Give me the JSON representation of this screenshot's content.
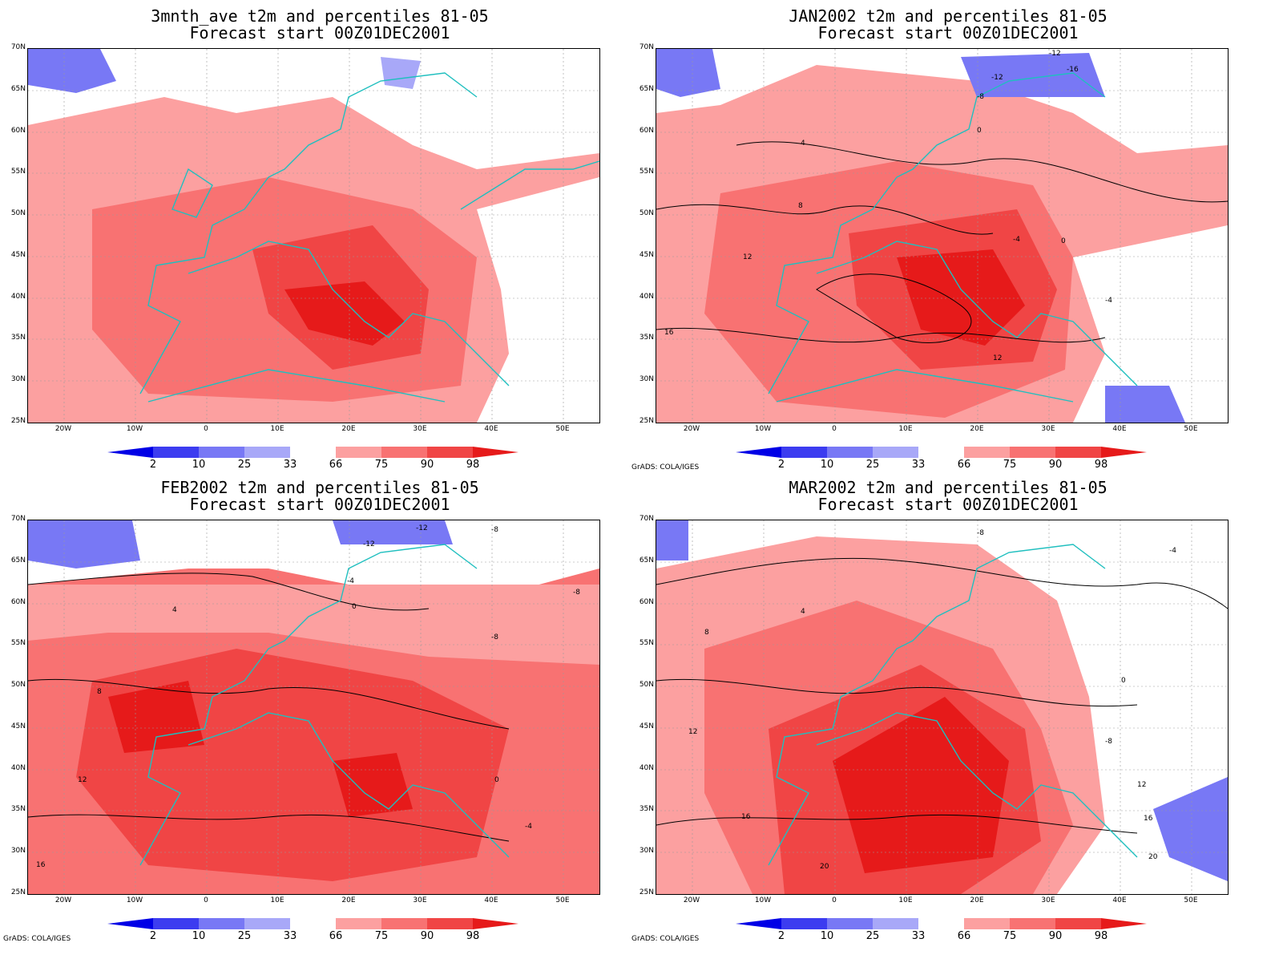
{
  "panels": [
    {
      "title1": "3mnth_ave t2m and percentiles 81-05",
      "title2": "Forecast start 00Z01DEC2001",
      "credit": ""
    },
    {
      "title1": "JAN2002 t2m and percentiles 81-05",
      "title2": "Forecast start 00Z01DEC2001",
      "credit": "GrADS: COLA/IGES"
    },
    {
      "title1": "FEB2002 t2m and percentiles 81-05",
      "title2": "Forecast start 00Z01DEC2001",
      "credit": "GrADS: COLA/IGES"
    },
    {
      "title1": "MAR2002 t2m and percentiles 81-05",
      "title2": "Forecast start 00Z01DEC2001",
      "credit": "GrADS: COLA/IGES"
    }
  ],
  "lat_labels": [
    "70N",
    "65N",
    "60N",
    "55N",
    "50N",
    "45N",
    "40N",
    "35N",
    "30N",
    "25N"
  ],
  "lon_labels": [
    "20W",
    "10W",
    "0",
    "10E",
    "20E",
    "30E",
    "40E",
    "50E"
  ],
  "colorbar": {
    "labels": [
      "2",
      "10",
      "25",
      "33",
      "66",
      "75",
      "90",
      "98"
    ],
    "colors": [
      "#0000e6",
      "#3c3cf0",
      "#7878f5",
      "#a8a8f8",
      "#ffffff",
      "#fca0a0",
      "#f87272",
      "#f04545",
      "#e61a1a"
    ]
  },
  "contour_labels": {
    "jan": [
      "-12",
      "-16",
      "-12",
      "-8",
      "-4",
      "0",
      "4",
      "8",
      "12",
      "16",
      "-4",
      "0",
      "12"
    ],
    "feb": [
      "-12",
      "-8",
      "-12",
      "-4",
      "-8",
      "0",
      "4",
      "8",
      "12",
      "16",
      "-8",
      "-4",
      "0"
    ],
    "mar": [
      "-8",
      "-4",
      "4",
      "8",
      "12",
      "16",
      "20",
      "0",
      "-8",
      "12",
      "16",
      "20"
    ]
  }
}
